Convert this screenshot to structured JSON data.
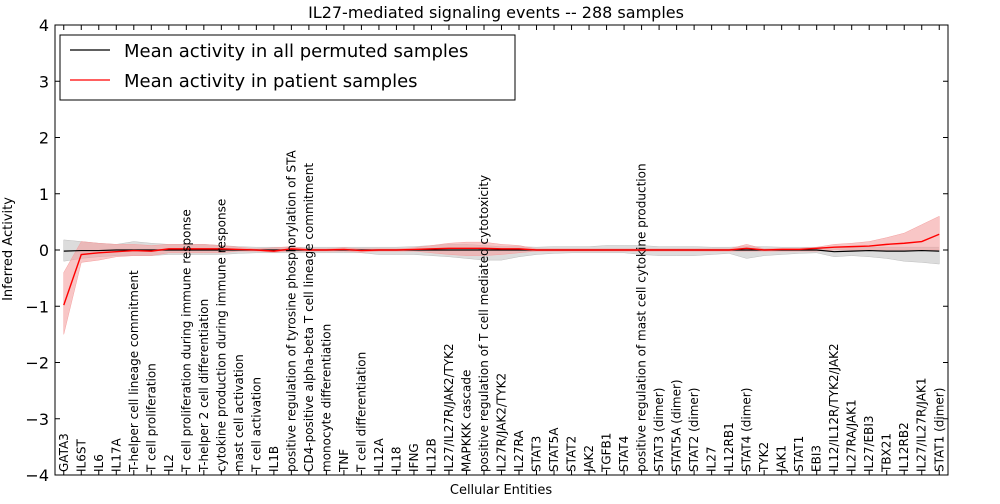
{
  "chart_data": {
    "type": "line",
    "title": "IL27-mediated signaling events -- 288 samples",
    "xlabel": "Cellular Entities",
    "ylabel": "Inferred Activity",
    "ylim": [
      -4,
      4
    ],
    "yticks": [
      -4,
      -3,
      -2,
      -1,
      0,
      1,
      2,
      3,
      4
    ],
    "ytick_labels": [
      "−4",
      "−3",
      "−2",
      "−1",
      "0",
      "1",
      "2",
      "3",
      "4"
    ],
    "legend_position": "top-left",
    "categories": [
      "GATA3",
      "IL6ST",
      "IL6",
      "IL17A",
      "T-helper cell lineage commitment",
      "T cell proliferation",
      "IL2",
      "T cell proliferation during immune response",
      "T-helper 2 cell differentiation",
      "cytokine production during immune response",
      "mast cell activation",
      "T cell activation",
      "IL1B",
      "positive regulation of tyrosine phosphorylation of STA",
      "CD4-positive alpha-beta T cell lineage commitment",
      "monocyte differentiation",
      "TNF",
      "T cell differentiation",
      "IL12A",
      "IL18",
      "IFNG",
      "IL12B",
      "IL27/IL27R/JAK2/TYK2",
      "MAPKKK cascade",
      "positive regulation of T cell mediated cytotoxicity",
      "IL27R/JAK2/TYK2",
      "IL27RA",
      "STAT3",
      "STAT5A",
      "STAT2",
      "JAK2",
      "TGFB1",
      "STAT4",
      "positive regulation of mast cell cytokine production",
      "STAT3 (dimer)",
      "STAT5A (dimer)",
      "STAT2 (dimer)",
      "IL27",
      "IL12RB1",
      "STAT4 (dimer)",
      "TYK2",
      "JAK1",
      "STAT1",
      "EBI3",
      "IL12/IL12R/TYK2/JAK2",
      "IL27RA/JAK1",
      "IL27/EBI3",
      "TBX21",
      "IL12RB2",
      "IL27/IL27R/JAK1",
      "STAT1 (dimer)"
    ],
    "series": [
      {
        "name": "Mean activity in all permuted samples",
        "color": "#000000",
        "band_color": "#bfbfbf",
        "values": [
          -0.02,
          -0.01,
          -0.01,
          0,
          0,
          0,
          0,
          0,
          0,
          0,
          0,
          0,
          0,
          0,
          0,
          0,
          0,
          0,
          0,
          0,
          0,
          0,
          0,
          0,
          0,
          0,
          0,
          0,
          0,
          0,
          0,
          0,
          0,
          0,
          0,
          0,
          0,
          0,
          0,
          0,
          0,
          0,
          0,
          0,
          -0.03,
          -0.02,
          -0.01,
          -0.02,
          -0.02,
          -0.01,
          -0.02
        ],
        "lower": [
          -0.2,
          -0.15,
          -0.12,
          -0.1,
          -0.1,
          -0.1,
          -0.08,
          -0.08,
          -0.08,
          -0.08,
          -0.06,
          -0.05,
          -0.05,
          -0.05,
          -0.05,
          -0.05,
          -0.05,
          -0.05,
          -0.08,
          -0.08,
          -0.08,
          -0.1,
          -0.12,
          -0.15,
          -0.18,
          -0.18,
          -0.12,
          -0.08,
          -0.06,
          -0.05,
          -0.05,
          -0.05,
          -0.05,
          -0.08,
          -0.1,
          -0.1,
          -0.1,
          -0.08,
          -0.06,
          -0.15,
          -0.1,
          -0.08,
          -0.06,
          -0.05,
          -0.12,
          -0.1,
          -0.12,
          -0.15,
          -0.2,
          -0.22,
          -0.25
        ],
        "upper": [
          0.18,
          0.15,
          0.12,
          0.1,
          0.15,
          0.12,
          0.1,
          0.1,
          0.1,
          0.08,
          0.06,
          0.05,
          0.05,
          0.05,
          0.05,
          0.05,
          0.05,
          0.05,
          0.05,
          0.05,
          0.06,
          0.08,
          0.1,
          0.1,
          0.08,
          0.06,
          0.06,
          0.05,
          0.06,
          0.06,
          0.06,
          0.08,
          0.08,
          0.08,
          0.06,
          0.06,
          0.06,
          0.05,
          0.05,
          0.06,
          0.06,
          0.05,
          0.05,
          0.05,
          0.05,
          0.05,
          0.05,
          0.05,
          0.05,
          0.05,
          0.05
        ]
      },
      {
        "name": "Mean activity in patient samples",
        "color": "#ff0000",
        "band_color": "#f4a0a0",
        "values": [
          -0.98,
          -0.08,
          -0.05,
          -0.03,
          -0.01,
          -0.02,
          0.02,
          0.02,
          0.02,
          0.02,
          0.01,
          0,
          -0.02,
          0.02,
          0,
          0,
          0.01,
          -0.01,
          0,
          0,
          0.01,
          0.02,
          0.03,
          0.03,
          0.03,
          0.02,
          0.02,
          0,
          0,
          0,
          0,
          0,
          0,
          0,
          0,
          0,
          0,
          0,
          0,
          0.03,
          0,
          0.01,
          0.01,
          0.03,
          0.05,
          0.06,
          0.07,
          0.1,
          0.12,
          0.15,
          0.28
        ],
        "lower": [
          -1.5,
          -0.22,
          -0.18,
          -0.12,
          -0.1,
          -0.1,
          -0.05,
          -0.05,
          -0.05,
          -0.05,
          -0.02,
          -0.02,
          -0.04,
          -0.02,
          -0.02,
          -0.02,
          -0.02,
          -0.04,
          -0.02,
          -0.02,
          -0.02,
          -0.05,
          -0.08,
          -0.1,
          -0.1,
          -0.08,
          -0.05,
          -0.02,
          -0.02,
          -0.02,
          -0.02,
          -0.02,
          -0.02,
          -0.02,
          -0.02,
          -0.02,
          -0.02,
          -0.02,
          -0.02,
          -0.02,
          -0.02,
          -0.02,
          -0.02,
          -0.02,
          0,
          0,
          0,
          0,
          0,
          0,
          0
        ],
        "upper": [
          -0.4,
          0.15,
          0.12,
          0.1,
          0.1,
          0.08,
          0.1,
          0.1,
          0.1,
          0.08,
          0.05,
          0.02,
          0.04,
          0.06,
          0.02,
          0.02,
          0.04,
          0.02,
          0.02,
          0.02,
          0.04,
          0.08,
          0.12,
          0.14,
          0.14,
          0.1,
          0.08,
          0.02,
          0.02,
          0.02,
          0.02,
          0.02,
          0.02,
          0.02,
          0.02,
          0.02,
          0.02,
          0.02,
          0.02,
          0.1,
          0.02,
          0.03,
          0.03,
          0.05,
          0.1,
          0.12,
          0.15,
          0.22,
          0.3,
          0.45,
          0.6
        ]
      }
    ]
  }
}
